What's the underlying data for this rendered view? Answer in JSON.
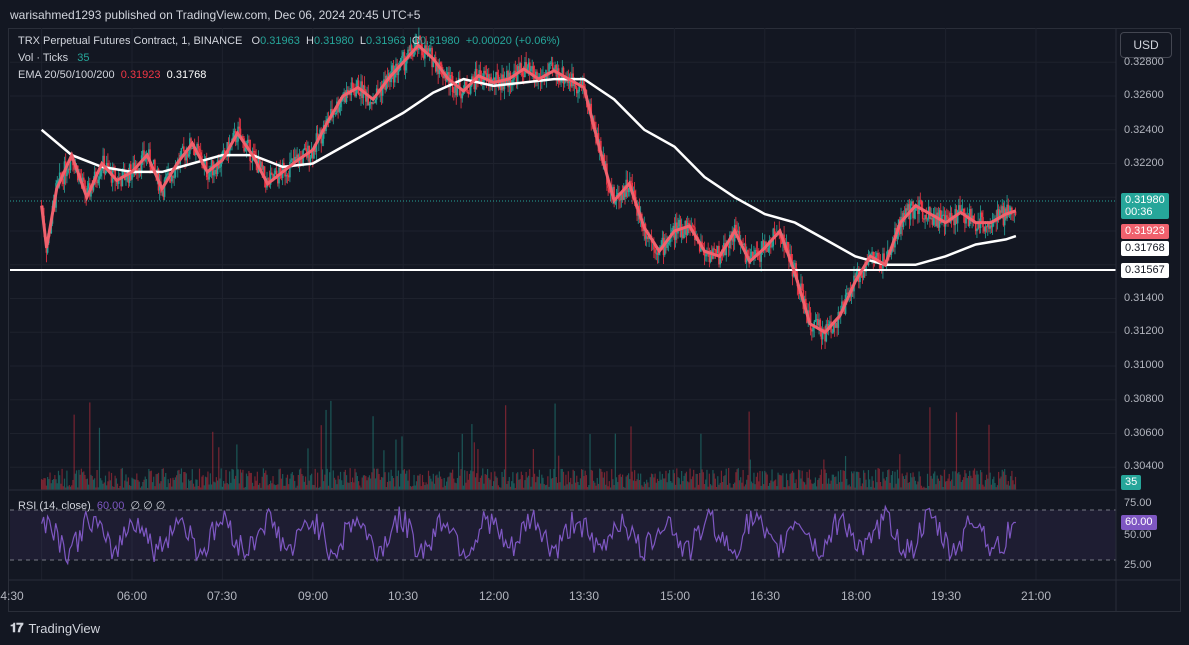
{
  "header": {
    "publish_line": "warisahmed1293 published on TradingView.com, Dec 06, 2024 20:45 UTC+5"
  },
  "legend": {
    "symbol": "TRX Perpetual Futures Contract, 1, BINANCE",
    "o_label": "O",
    "o_value": "0.31963",
    "h_label": "H",
    "h_value": "0.31980",
    "l_label": "L",
    "l_value": "0.31963",
    "c_label": "C",
    "c_value": "0.31980",
    "change": "+0.00020 (+0.06%)",
    "vol_label": "Vol · Ticks",
    "vol_value": "35",
    "ema_label": "EMA 20/50/100/200",
    "ema_fast": "0.31923",
    "ema_slow": "0.31768"
  },
  "rsi_legend": {
    "label": "RSI (14, close)",
    "value": "60.00",
    "extra": "∅ ∅ ∅"
  },
  "currency_button": "USD",
  "price_axis": {
    "ticks": [
      "0.32800",
      "0.32600",
      "0.32400",
      "0.32200",
      "0.31400",
      "0.31200",
      "0.31000",
      "0.30800",
      "0.30600",
      "0.30400"
    ],
    "last_price": "0.31980",
    "countdown": "00:36",
    "ema_fast_tag": "0.31923",
    "ema_slow_tag": "0.31768",
    "support_tag": "0.31567",
    "volume_tag": "35"
  },
  "rsi_axis": {
    "ticks": [
      "75.00",
      "50.00",
      "25.00"
    ],
    "current": "60.00"
  },
  "time_axis": [
    "4:30",
    "06:00",
    "07:30",
    "09:00",
    "10:30",
    "12:00",
    "13:30",
    "15:00",
    "16:30",
    "18:00",
    "19:30",
    "21:00"
  ],
  "footer": {
    "brand": "TradingView"
  },
  "colors": {
    "up": "#26a69a",
    "down": "#f23645",
    "ema_fast": "#f0616d",
    "ema_slow": "#ffffff",
    "rsi": "#7e57c2",
    "background": "#131722"
  },
  "chart_data": {
    "type": "line",
    "title": "TRX Perpetual Futures Contract, 1, BINANCE",
    "x_range": [
      "04:30",
      "21:00"
    ],
    "ylim": [
      0.303,
      0.329
    ],
    "support_level": 0.31567,
    "last_price": 0.3198,
    "series": [
      {
        "name": "EMA fast",
        "x": [
          "04:30",
          "04:35",
          "04:45",
          "05:00",
          "05:15",
          "05:30",
          "05:45",
          "06:00",
          "06:15",
          "06:30",
          "06:45",
          "07:00",
          "07:15",
          "07:30",
          "07:45",
          "08:00",
          "08:15",
          "08:30",
          "08:45",
          "09:00",
          "09:15",
          "09:30",
          "09:45",
          "10:00",
          "10:15",
          "10:30",
          "10:45",
          "11:00",
          "11:15",
          "11:30",
          "11:45",
          "12:00",
          "12:15",
          "12:30",
          "12:45",
          "13:00",
          "13:15",
          "13:30",
          "13:45",
          "14:00",
          "14:15",
          "14:30",
          "14:45",
          "15:00",
          "15:15",
          "15:30",
          "15:45",
          "16:00",
          "16:15",
          "16:30",
          "16:45",
          "17:00",
          "17:15",
          "17:30",
          "17:45",
          "18:00",
          "18:15",
          "18:30",
          "18:45",
          "19:00",
          "19:15",
          "19:30",
          "19:45",
          "20:00",
          "20:15",
          "20:30",
          "20:40"
        ],
        "values": [
          0.3195,
          0.317,
          0.3205,
          0.3225,
          0.32,
          0.322,
          0.321,
          0.3215,
          0.3225,
          0.3205,
          0.322,
          0.3232,
          0.3215,
          0.3222,
          0.3238,
          0.3225,
          0.3208,
          0.3215,
          0.3222,
          0.3228,
          0.3245,
          0.326,
          0.3265,
          0.3258,
          0.327,
          0.328,
          0.329,
          0.3282,
          0.327,
          0.3263,
          0.3272,
          0.3268,
          0.327,
          0.3276,
          0.327,
          0.3275,
          0.327,
          0.3265,
          0.323,
          0.3198,
          0.3208,
          0.3182,
          0.3168,
          0.318,
          0.3183,
          0.3168,
          0.3165,
          0.318,
          0.3162,
          0.317,
          0.318,
          0.3155,
          0.3125,
          0.312,
          0.313,
          0.315,
          0.3165,
          0.316,
          0.3185,
          0.3195,
          0.319,
          0.3185,
          0.3191,
          0.3185,
          0.3185,
          0.319,
          0.3192
        ]
      },
      {
        "name": "EMA slow",
        "x": [
          "04:30",
          "05:00",
          "05:30",
          "06:00",
          "06:30",
          "07:00",
          "07:30",
          "08:00",
          "08:30",
          "09:00",
          "09:30",
          "10:00",
          "10:30",
          "11:00",
          "11:30",
          "12:00",
          "12:30",
          "13:00",
          "13:30",
          "14:00",
          "14:30",
          "15:00",
          "15:30",
          "16:00",
          "16:30",
          "17:00",
          "17:30",
          "18:00",
          "18:30",
          "19:00",
          "19:30",
          "20:00",
          "20:30",
          "20:40"
        ],
        "values": [
          0.324,
          0.3225,
          0.3218,
          0.3215,
          0.3215,
          0.322,
          0.3225,
          0.3225,
          0.3218,
          0.322,
          0.323,
          0.324,
          0.325,
          0.3262,
          0.327,
          0.3266,
          0.3268,
          0.327,
          0.327,
          0.3258,
          0.324,
          0.323,
          0.3212,
          0.32,
          0.319,
          0.3185,
          0.3175,
          0.3165,
          0.316,
          0.316,
          0.3165,
          0.3172,
          0.3175,
          0.3177
        ]
      }
    ],
    "rsi": {
      "name": "RSI (14, close)",
      "ylim": [
        0,
        100
      ],
      "overbought": 70,
      "oversold": 30,
      "current": 60.0
    }
  }
}
